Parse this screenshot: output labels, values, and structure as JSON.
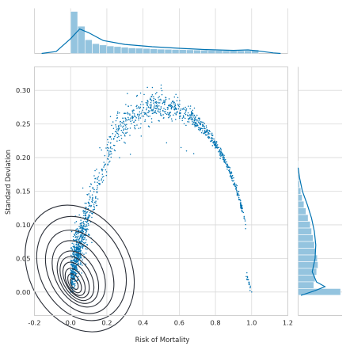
{
  "chart_data": {
    "type": "scatter",
    "subtype": "jointplot",
    "xlabel": "Risk of Mortality",
    "ylabel": "Standard Deviation",
    "xlim": [
      -0.2,
      1.2
    ],
    "ylim": [
      -0.035,
      0.335
    ],
    "xticks": [
      "-0.2",
      "0.0",
      "0.2",
      "0.4",
      "0.6",
      "0.8",
      "1.0",
      "1.2"
    ],
    "xtick_values": [
      -0.2,
      0.0,
      0.2,
      0.4,
      0.6,
      0.8,
      1.0,
      1.2
    ],
    "yticks": [
      "0.00",
      "0.05",
      "0.10",
      "0.15",
      "0.20",
      "0.25",
      "0.30"
    ],
    "ytick_values": [
      0.0,
      0.05,
      0.1,
      0.15,
      0.2,
      0.25,
      0.3
    ],
    "grid": true,
    "colors": {
      "points": "#0173b2",
      "hist": "#94c4df",
      "kde_line": "#0173b2",
      "contour": "#2b2f38",
      "grid": "#d9d9d9"
    },
    "scatter_description": "about 1500 points forming an inverted-U (arch) shape: dense near (0,0), peak std ~0.12-0.14 around risk 0.4-0.6, falling to 0 at risk 1.0; outliers up to ~0.31",
    "outliers": [
      [
        0.5,
        0.308
      ],
      [
        0.46,
        0.288
      ],
      [
        0.47,
        0.295
      ],
      [
        0.22,
        0.261
      ],
      [
        0.58,
        0.257
      ],
      [
        0.39,
        0.232
      ],
      [
        0.53,
        0.222
      ],
      [
        0.61,
        0.215
      ],
      [
        0.68,
        0.206
      ],
      [
        0.64,
        0.21
      ],
      [
        0.19,
        0.19
      ],
      [
        0.27,
        0.2
      ],
      [
        0.33,
        0.205
      ]
    ],
    "contour_levels": [
      {
        "cx": 0.05,
        "cy": 0.035,
        "rx": 0.28,
        "ry": 0.045,
        "angle": 28
      },
      {
        "cx": 0.06,
        "cy": 0.035,
        "rx": 0.23,
        "ry": 0.037,
        "angle": 28
      },
      {
        "cx": 0.05,
        "cy": 0.03,
        "rx": 0.17,
        "ry": 0.03,
        "angle": 28
      },
      {
        "cx": 0.045,
        "cy": 0.027,
        "rx": 0.13,
        "ry": 0.024,
        "angle": 28
      },
      {
        "cx": 0.04,
        "cy": 0.022,
        "rx": 0.1,
        "ry": 0.019,
        "angle": 28
      },
      {
        "cx": 0.035,
        "cy": 0.02,
        "rx": 0.08,
        "ry": 0.016,
        "angle": 28
      },
      {
        "cx": 0.03,
        "cy": 0.018,
        "rx": 0.06,
        "ry": 0.013,
        "angle": 28
      },
      {
        "cx": 0.025,
        "cy": 0.015,
        "rx": 0.045,
        "ry": 0.01,
        "angle": 28
      },
      {
        "cx": 0.022,
        "cy": 0.013,
        "rx": 0.03,
        "ry": 0.007,
        "angle": 28
      },
      {
        "cx": 0.02,
        "cy": 0.012,
        "rx": 0.018,
        "ry": 0.004,
        "angle": 28
      }
    ],
    "x_marginal_hist": {
      "bin_edges_start": 0.0,
      "bin_width": 0.04,
      "density": [
        6.5,
        4.2,
        2.1,
        1.5,
        1.3,
        1.15,
        1.05,
        0.95,
        0.85,
        0.8,
        0.75,
        0.7,
        0.65,
        0.62,
        0.6,
        0.58,
        0.55,
        0.52,
        0.5,
        0.48,
        0.45,
        0.42,
        0.42,
        0.4,
        0.42,
        0.55
      ]
    },
    "x_marginal_kde": [
      [
        -0.16,
        0.0
      ],
      [
        -0.08,
        0.3
      ],
      [
        0.0,
        2.3
      ],
      [
        0.05,
        3.8
      ],
      [
        0.1,
        3.2
      ],
      [
        0.18,
        2.0
      ],
      [
        0.3,
        1.4
      ],
      [
        0.45,
        1.05
      ],
      [
        0.6,
        0.8
      ],
      [
        0.75,
        0.6
      ],
      [
        0.9,
        0.48
      ],
      [
        0.98,
        0.55
      ],
      [
        1.03,
        0.4
      ],
      [
        1.12,
        0.08
      ],
      [
        1.16,
        0.0
      ]
    ],
    "y_marginal_hist": {
      "bin_edges_start": -0.005,
      "bin_width": 0.01,
      "density": [
        30,
        11,
        12,
        13,
        14,
        13.5,
        12.5,
        11.5,
        10.5,
        9.5,
        8.5,
        7,
        5.5,
        4,
        2.8,
        1.8,
        1.0,
        0.6,
        0.3,
        0.2
      ]
    },
    "y_marginal_kde": [
      [
        -0.005,
        2
      ],
      [
        0.002,
        12
      ],
      [
        0.008,
        19
      ],
      [
        0.015,
        13
      ],
      [
        0.03,
        10
      ],
      [
        0.05,
        12
      ],
      [
        0.07,
        12.5
      ],
      [
        0.09,
        11.5
      ],
      [
        0.11,
        9.5
      ],
      [
        0.13,
        6.5
      ],
      [
        0.15,
        3.0
      ],
      [
        0.17,
        1.0
      ],
      [
        0.185,
        0.0
      ]
    ]
  }
}
